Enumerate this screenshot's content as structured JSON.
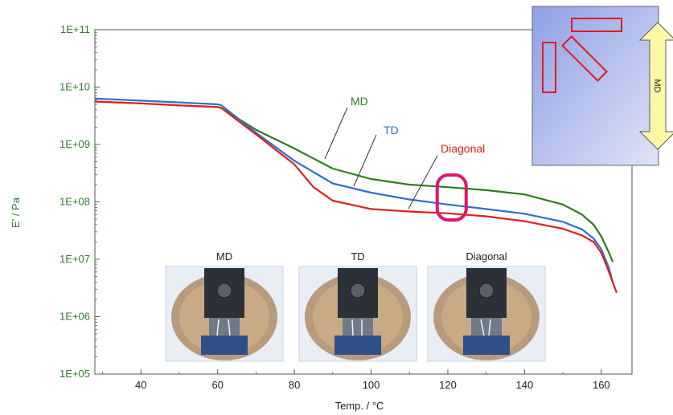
{
  "chart_data": {
    "type": "line",
    "xlabel": "Temp. / °C",
    "ylabel": "E' / Pa",
    "xlim": [
      28,
      168
    ],
    "xticks": [
      40,
      60,
      80,
      100,
      120,
      140,
      160
    ],
    "ylim_log10": [
      5,
      11
    ],
    "ytick_labels": [
      "1E+05",
      "1E+06",
      "1E+07",
      "1E+08",
      "1E+09",
      "1E+10",
      "1E+11"
    ],
    "yscale": "log",
    "grid": false,
    "series": [
      {
        "name": "MD",
        "color": "#2e7d1f",
        "x": [
          28,
          40,
          50,
          60,
          61,
          70,
          80,
          90,
          100,
          110,
          120,
          130,
          140,
          150,
          155,
          158,
          160,
          162,
          163
        ],
        "y": [
          5600000000.0,
          5200000000.0,
          4800000000.0,
          4500000000.0,
          4300000000.0,
          1800000000.0,
          850000000.0,
          380000000.0,
          250000000.0,
          200000000.0,
          180000000.0,
          160000000.0,
          135000000.0,
          90000000.0,
          60000000.0,
          40000000.0,
          25000000.0,
          13000000.0,
          9000000.0
        ]
      },
      {
        "name": "TD",
        "color": "#2f6fc9",
        "x": [
          28,
          40,
          50,
          60,
          61,
          70,
          80,
          90,
          100,
          110,
          120,
          130,
          140,
          150,
          155,
          158,
          160,
          162,
          163
        ],
        "y": [
          6300000000.0,
          5800000000.0,
          5400000000.0,
          5000000000.0,
          4800000000.0,
          1600000000.0,
          520000000.0,
          210000000.0,
          145000000.0,
          110000000.0,
          90000000.0,
          75000000.0,
          62000000.0,
          45000000.0,
          33000000.0,
          23000000.0,
          15000000.0,
          7000000.0,
          4000000.0
        ]
      },
      {
        "name": "Diagonal",
        "color": "#e02020",
        "x": [
          28,
          40,
          50,
          60,
          61,
          70,
          80,
          85,
          90,
          100,
          110,
          120,
          130,
          140,
          150,
          155,
          158,
          160,
          162,
          164
        ],
        "y": [
          5600000000.0,
          5200000000.0,
          4800000000.0,
          4500000000.0,
          4300000000.0,
          1500000000.0,
          450000000.0,
          180000000.0,
          105000000.0,
          75000000.0,
          68000000.0,
          63000000.0,
          56000000.0,
          46000000.0,
          34000000.0,
          26000000.0,
          20000000.0,
          13000000.0,
          6000000.0,
          2600000.0
        ]
      }
    ],
    "annotations": {
      "highlight_at_x": 121
    }
  },
  "photos": [
    {
      "label": "MD"
    },
    {
      "label": "TD"
    },
    {
      "label": "Diagonal"
    }
  ],
  "inset": {
    "label": "MD"
  },
  "colors": {
    "axis_green": "#2e7d2e",
    "highlight": "#e0156d"
  }
}
